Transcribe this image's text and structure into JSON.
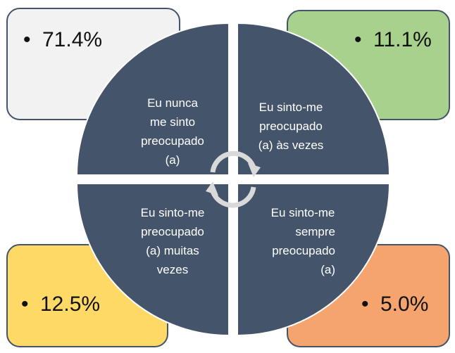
{
  "quadrants": [
    {
      "lines": [
        "Eu nunca",
        "me sinto",
        "preocupado",
        "(a)"
      ],
      "value": "71.4%"
    },
    {
      "lines": [
        "Eu sinto-me",
        "preocupado",
        "(a) às vezes"
      ],
      "value": "11.1%"
    },
    {
      "lines": [
        "Eu sinto-me",
        "preocupado",
        "(a) muitas",
        "vezes"
      ],
      "value": "12.5%"
    },
    {
      "lines": [
        "Eu sinto-me",
        "sempre",
        "preocupado",
        "(a)"
      ],
      "value": "5.0%"
    }
  ]
}
